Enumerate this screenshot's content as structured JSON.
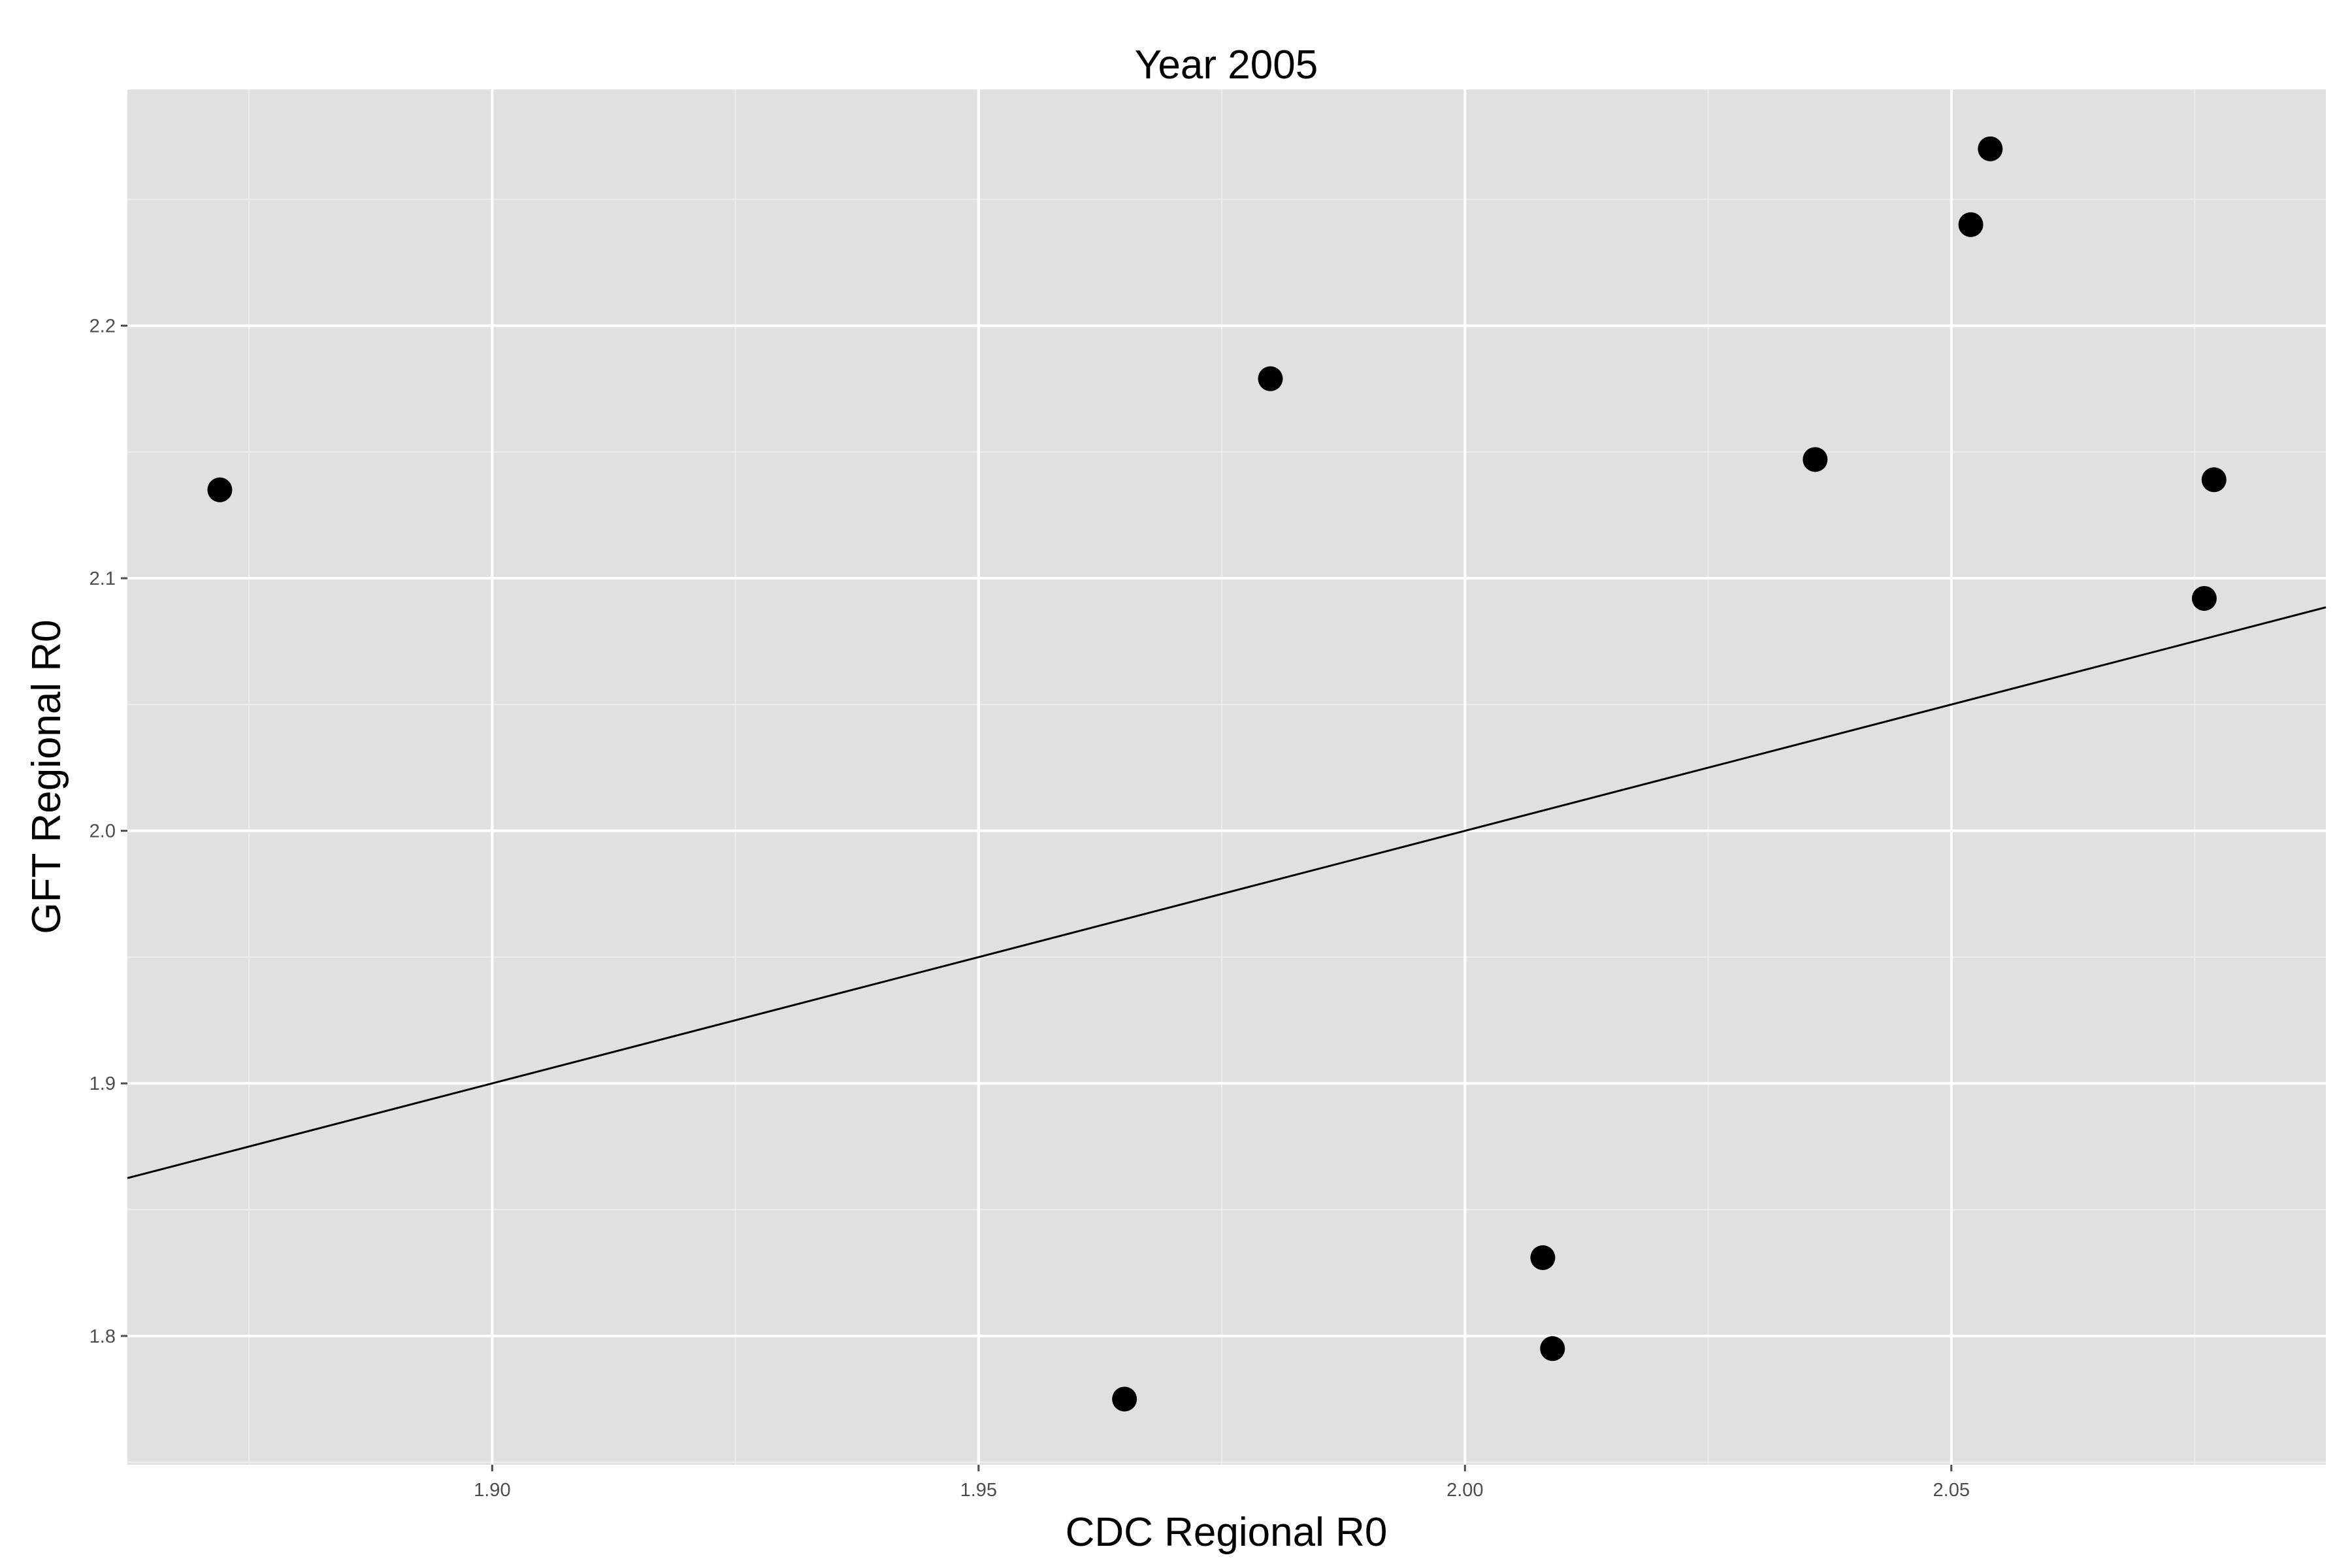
{
  "chart_data": {
    "type": "scatter",
    "title": "Year 2005",
    "xlabel": "CDC Regional R0",
    "ylabel": "GFT Regional R0",
    "xlim": [
      1.8625,
      2.0885
    ],
    "ylim": [
      1.749,
      2.2935
    ],
    "x_ticks": [
      1.9,
      1.95,
      2.0,
      2.05
    ],
    "x_tick_labels": [
      "1.90",
      "1.95",
      "2.00",
      "2.05"
    ],
    "y_ticks": [
      1.8,
      1.9,
      2.0,
      2.1,
      2.2
    ],
    "y_tick_labels": [
      "1.8",
      "1.9",
      "2.0",
      "2.1",
      "2.2"
    ],
    "grid": true,
    "points": [
      {
        "x": 1.872,
        "y": 2.135
      },
      {
        "x": 1.965,
        "y": 1.775
      },
      {
        "x": 1.98,
        "y": 2.179
      },
      {
        "x": 2.008,
        "y": 1.831
      },
      {
        "x": 2.009,
        "y": 1.795
      },
      {
        "x": 2.036,
        "y": 2.147
      },
      {
        "x": 2.052,
        "y": 2.24
      },
      {
        "x": 2.054,
        "y": 2.27
      },
      {
        "x": 2.076,
        "y": 2.092
      },
      {
        "x": 2.077,
        "y": 2.139
      }
    ],
    "reference_line": {
      "slope": 1,
      "intercept": 0
    },
    "colors": {
      "panel": "#e0e0e0",
      "grid_major": "#ffffff",
      "grid_minor": "#ececec",
      "points": "#000000",
      "line": "#000000"
    }
  }
}
